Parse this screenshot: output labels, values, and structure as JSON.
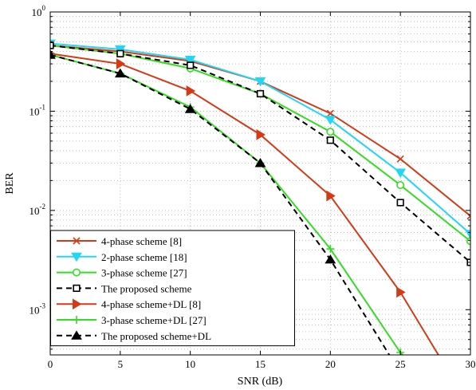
{
  "chart_data": {
    "type": "line",
    "title": "",
    "xlabel": "SNR (dB)",
    "ylabel": "BER",
    "xlim": [
      0,
      30
    ],
    "ylim": [
      0.00035,
      1
    ],
    "yscale": "log",
    "grid": true,
    "x_ticks": [
      "0",
      "5",
      "10",
      "15",
      "20",
      "25",
      "30"
    ],
    "y_ticks": [
      {
        "value": 1,
        "base": "10",
        "exp": "0"
      },
      {
        "value": 0.1,
        "base": "10",
        "exp": "-1"
      },
      {
        "value": 0.01,
        "base": "10",
        "exp": "-2"
      },
      {
        "value": 0.001,
        "base": "10",
        "exp": "-3"
      }
    ],
    "legend_position": "bottom-left",
    "series": [
      {
        "name": "4-phase scheme [8]",
        "color": "#d43a16",
        "dash": "solid",
        "marker": "x",
        "points": [
          [
            0,
            0.46
          ],
          [
            5,
            0.4
          ],
          [
            10,
            0.32
          ],
          [
            15,
            0.2
          ],
          [
            20,
            0.095
          ],
          [
            25,
            0.033
          ],
          [
            30,
            0.0088
          ]
        ]
      },
      {
        "name": "2-phase scheme [18]",
        "color": "#22d6f5",
        "dash": "solid",
        "marker": "triangle-down",
        "points": [
          [
            0,
            0.48
          ],
          [
            5,
            0.42
          ],
          [
            10,
            0.33
          ],
          [
            15,
            0.2
          ],
          [
            20,
            0.082
          ],
          [
            25,
            0.024
          ],
          [
            30,
            0.0058
          ]
        ]
      },
      {
        "name": "3-phase scheme [27]",
        "color": "#33dd22",
        "dash": "solid",
        "marker": "circle",
        "points": [
          [
            0,
            0.46
          ],
          [
            5,
            0.38
          ],
          [
            10,
            0.27
          ],
          [
            15,
            0.15
          ],
          [
            20,
            0.062
          ],
          [
            25,
            0.018
          ],
          [
            30,
            0.0049
          ]
        ]
      },
      {
        "name": "The proposed scheme",
        "color": "#000000",
        "dash": "dashed",
        "marker": "square",
        "points": [
          [
            0,
            0.46
          ],
          [
            5,
            0.38
          ],
          [
            10,
            0.29
          ],
          [
            15,
            0.15
          ],
          [
            20,
            0.051
          ],
          [
            25,
            0.012
          ],
          [
            30,
            0.003
          ]
        ]
      },
      {
        "name": "4-phase scheme+DL [8]",
        "color": "#d43a16",
        "dash": "solid",
        "marker": "triangle-right",
        "points": [
          [
            0,
            0.38
          ],
          [
            5,
            0.3
          ],
          [
            10,
            0.16
          ],
          [
            15,
            0.058
          ],
          [
            20,
            0.014
          ],
          [
            25,
            0.0015
          ],
          [
            28,
            0.0003
          ]
        ]
      },
      {
        "name": "3-phase scheme+DL [27]",
        "color": "#33dd22",
        "dash": "solid",
        "marker": "plus",
        "points": [
          [
            0,
            0.37
          ],
          [
            5,
            0.24
          ],
          [
            10,
            0.11
          ],
          [
            15,
            0.03
          ],
          [
            20,
            0.0041
          ],
          [
            25,
            0.00037
          ],
          [
            26,
            0.00026
          ]
        ]
      },
      {
        "name": "The proposed scheme+DL",
        "color": "#000000",
        "dash": "dashed",
        "marker": "triangle-up",
        "points": [
          [
            0,
            0.37
          ],
          [
            5,
            0.24
          ],
          [
            10,
            0.105
          ],
          [
            15,
            0.03
          ],
          [
            20,
            0.0032
          ],
          [
            24.5,
            0.0003
          ]
        ]
      }
    ]
  }
}
